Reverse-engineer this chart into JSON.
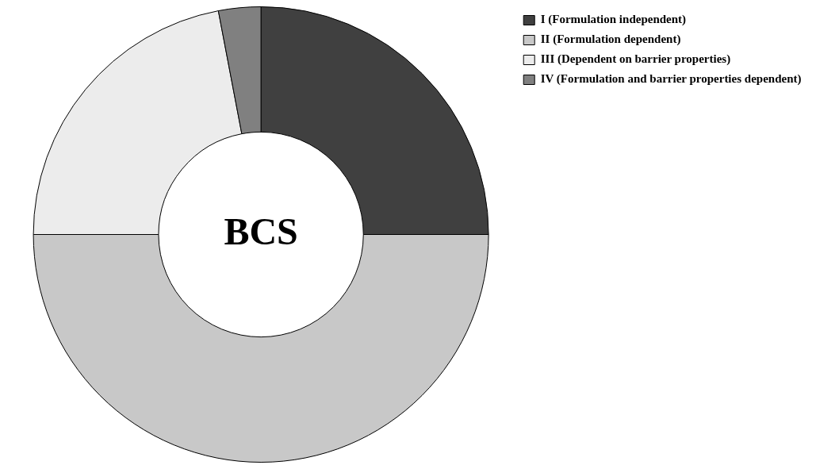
{
  "chart_data": {
    "type": "donut",
    "categories": [
      "I (Formulation independent)",
      "II (Formulation dependent)",
      "III (Dependent on barrier properties)",
      "IV (Formulation and barrier properties dependent)"
    ],
    "values": [
      25,
      50,
      22,
      3
    ],
    "colors": [
      "#404040",
      "#c8c8c8",
      "#ececec",
      "#808080"
    ],
    "annotations": [
      "BCS"
    ],
    "legend": "top right"
  }
}
